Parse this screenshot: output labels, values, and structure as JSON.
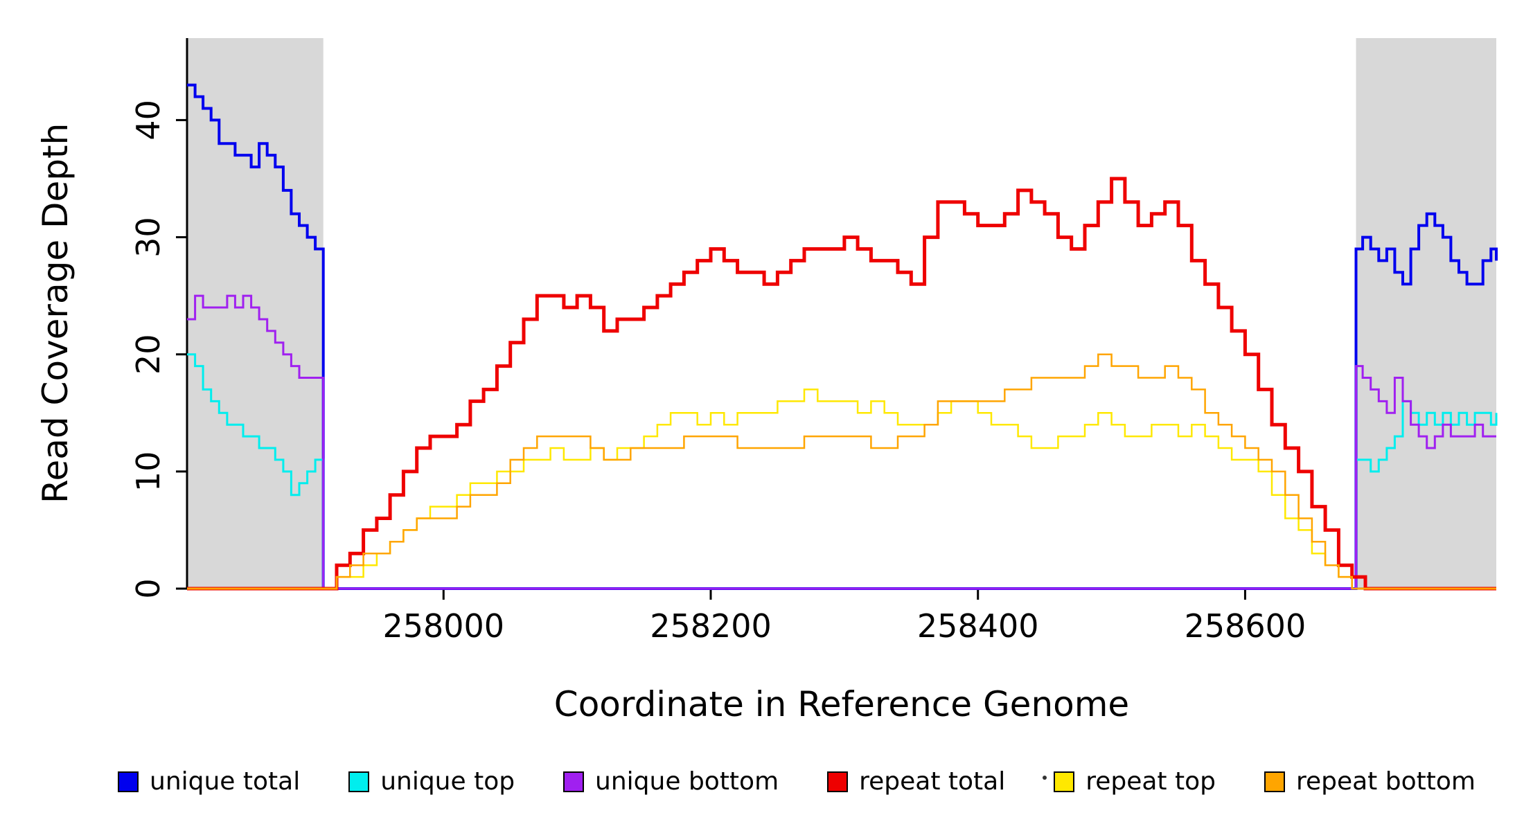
{
  "chart_data": {
    "type": "line",
    "style": "step",
    "title": "",
    "xlabel": "Coordinate in Reference Genome",
    "ylabel": "Read Coverage Depth",
    "xlim": [
      257808,
      258788
    ],
    "ylim": [
      0,
      47
    ],
    "x_ticks": [
      258000,
      258200,
      258400,
      258600
    ],
    "y_ticks": [
      0,
      10,
      20,
      30,
      40
    ],
    "grid": false,
    "legend_position": "bottom",
    "shaded_regions": [
      {
        "x0": 257808,
        "x1": 257910,
        "color": "#d8d8d8"
      },
      {
        "x0": 258683,
        "x1": 258788,
        "color": "#d8d8d8"
      }
    ],
    "series": [
      {
        "name": "unique total",
        "color": "#0000ee",
        "width": 4,
        "x": [
          257808,
          257814,
          257820,
          257826,
          257832,
          257838,
          257844,
          257850,
          257856,
          257862,
          257868,
          257874,
          257880,
          257886,
          257892,
          257898,
          257904,
          257910,
          258683,
          258688,
          258694,
          258700,
          258706,
          258712,
          258718,
          258724,
          258730,
          258736,
          258742,
          258748,
          258754,
          258760,
          258766,
          258772,
          258778,
          258784,
          258788
        ],
        "y": [
          43,
          42,
          41,
          40,
          38,
          38,
          37,
          37,
          36,
          38,
          37,
          36,
          34,
          32,
          31,
          30,
          29,
          0,
          29,
          30,
          29,
          28,
          29,
          27,
          26,
          29,
          31,
          32,
          31,
          30,
          28,
          27,
          26,
          26,
          28,
          29,
          28
        ]
      },
      {
        "name": "unique top",
        "color": "#00eeee",
        "width": 3,
        "x": [
          257808,
          257814,
          257820,
          257826,
          257832,
          257838,
          257844,
          257850,
          257856,
          257862,
          257868,
          257874,
          257880,
          257886,
          257892,
          257898,
          257904,
          257910,
          258683,
          258688,
          258694,
          258700,
          258706,
          258712,
          258718,
          258724,
          258730,
          258736,
          258742,
          258748,
          258754,
          258760,
          258766,
          258772,
          258778,
          258784,
          258788
        ],
        "y": [
          20,
          19,
          17,
          16,
          15,
          14,
          14,
          13,
          13,
          12,
          12,
          11,
          10,
          8,
          9,
          10,
          11,
          0,
          11,
          11,
          10,
          11,
          12,
          13,
          16,
          15,
          14,
          15,
          14,
          15,
          14,
          15,
          14,
          15,
          15,
          14,
          15
        ]
      },
      {
        "name": "unique bottom",
        "color": "#a020f0",
        "width": 3,
        "x": [
          257808,
          257814,
          257820,
          257826,
          257832,
          257838,
          257844,
          257850,
          257856,
          257862,
          257868,
          257874,
          257880,
          257886,
          257892,
          257898,
          257904,
          257910,
          258683,
          258688,
          258694,
          258700,
          258706,
          258712,
          258718,
          258724,
          258730,
          258736,
          258742,
          258748,
          258754,
          258760,
          258766,
          258772,
          258778,
          258784,
          258788
        ],
        "y": [
          23,
          25,
          24,
          24,
          24,
          25,
          24,
          25,
          24,
          23,
          22,
          21,
          20,
          19,
          18,
          18,
          18,
          0,
          19,
          18,
          17,
          16,
          15,
          18,
          16,
          14,
          13,
          12,
          13,
          14,
          13,
          13,
          13,
          14,
          13,
          13,
          13
        ]
      },
      {
        "name": "repeat total",
        "color": "#ee0000",
        "width": 5,
        "x": [
          257808,
          257910,
          257920,
          257930,
          257940,
          257950,
          257960,
          257970,
          257980,
          257990,
          258000,
          258010,
          258020,
          258030,
          258040,
          258050,
          258060,
          258070,
          258080,
          258090,
          258100,
          258110,
          258120,
          258130,
          258140,
          258150,
          258160,
          258170,
          258180,
          258190,
          258200,
          258210,
          258220,
          258230,
          258240,
          258250,
          258260,
          258270,
          258280,
          258290,
          258300,
          258310,
          258320,
          258330,
          258340,
          258350,
          258360,
          258370,
          258380,
          258390,
          258400,
          258410,
          258420,
          258430,
          258440,
          258450,
          258460,
          258470,
          258480,
          258490,
          258500,
          258510,
          258520,
          258530,
          258540,
          258550,
          258560,
          258570,
          258580,
          258590,
          258600,
          258610,
          258620,
          258630,
          258640,
          258650,
          258660,
          258670,
          258680,
          258690,
          258788
        ],
        "y": [
          0,
          0,
          2,
          3,
          5,
          6,
          8,
          10,
          12,
          13,
          13,
          14,
          16,
          17,
          19,
          21,
          23,
          25,
          25,
          24,
          25,
          24,
          22,
          23,
          23,
          24,
          25,
          26,
          27,
          28,
          29,
          28,
          27,
          27,
          26,
          27,
          28,
          29,
          29,
          29,
          30,
          29,
          28,
          28,
          27,
          26,
          30,
          33,
          33,
          32,
          31,
          31,
          32,
          34,
          33,
          32,
          30,
          29,
          31,
          33,
          35,
          33,
          31,
          32,
          33,
          31,
          28,
          26,
          24,
          22,
          20,
          17,
          14,
          12,
          10,
          7,
          5,
          2,
          1,
          0,
          0
        ]
      },
      {
        "name": "repeat top",
        "color": "#ffe800",
        "width": 2.5,
        "x": [
          257808,
          257910,
          257920,
          257930,
          257940,
          257950,
          257960,
          257970,
          257980,
          257990,
          258000,
          258010,
          258020,
          258030,
          258040,
          258050,
          258060,
          258070,
          258080,
          258090,
          258100,
          258110,
          258120,
          258130,
          258140,
          258150,
          258160,
          258170,
          258180,
          258190,
          258200,
          258210,
          258220,
          258230,
          258240,
          258250,
          258260,
          258270,
          258280,
          258290,
          258300,
          258310,
          258320,
          258330,
          258340,
          258350,
          258360,
          258370,
          258380,
          258390,
          258400,
          258410,
          258420,
          258430,
          258440,
          258450,
          258460,
          258470,
          258480,
          258490,
          258500,
          258510,
          258520,
          258530,
          258540,
          258550,
          258560,
          258570,
          258580,
          258590,
          258600,
          258610,
          258620,
          258630,
          258640,
          258650,
          258660,
          258670,
          258680,
          258690,
          258788
        ],
        "y": [
          0,
          0,
          1,
          1,
          2,
          3,
          4,
          5,
          6,
          7,
          7,
          8,
          9,
          9,
          10,
          10,
          11,
          11,
          12,
          11,
          11,
          12,
          11,
          12,
          12,
          13,
          14,
          15,
          15,
          14,
          15,
          14,
          15,
          15,
          15,
          16,
          16,
          17,
          16,
          16,
          16,
          15,
          16,
          15,
          14,
          14,
          14,
          15,
          16,
          16,
          15,
          14,
          14,
          13,
          12,
          12,
          13,
          13,
          14,
          15,
          14,
          13,
          13,
          14,
          14,
          13,
          14,
          13,
          12,
          11,
          11,
          10,
          8,
          6,
          5,
          3,
          2,
          1,
          0,
          0,
          0
        ]
      },
      {
        "name": "repeat bottom",
        "color": "#ffa500",
        "width": 2.5,
        "x": [
          257808,
          257910,
          257920,
          257930,
          257940,
          257950,
          257960,
          257970,
          257980,
          257990,
          258000,
          258010,
          258020,
          258030,
          258040,
          258050,
          258060,
          258070,
          258080,
          258090,
          258100,
          258110,
          258120,
          258130,
          258140,
          258150,
          258160,
          258170,
          258180,
          258190,
          258200,
          258210,
          258220,
          258230,
          258240,
          258250,
          258260,
          258270,
          258280,
          258290,
          258300,
          258310,
          258320,
          258330,
          258340,
          258350,
          258360,
          258370,
          258380,
          258390,
          258400,
          258410,
          258420,
          258430,
          258440,
          258450,
          258460,
          258470,
          258480,
          258490,
          258500,
          258510,
          258520,
          258530,
          258540,
          258550,
          258560,
          258570,
          258580,
          258590,
          258600,
          258610,
          258620,
          258630,
          258640,
          258650,
          258660,
          258670,
          258680,
          258690,
          258788
        ],
        "y": [
          0,
          0,
          1,
          2,
          3,
          3,
          4,
          5,
          6,
          6,
          6,
          7,
          8,
          8,
          9,
          11,
          12,
          13,
          13,
          13,
          13,
          12,
          11,
          11,
          12,
          12,
          12,
          12,
          13,
          13,
          13,
          13,
          12,
          12,
          12,
          12,
          12,
          13,
          13,
          13,
          13,
          13,
          12,
          12,
          13,
          13,
          14,
          16,
          16,
          16,
          16,
          16,
          17,
          17,
          18,
          18,
          18,
          18,
          19,
          20,
          19,
          19,
          18,
          18,
          19,
          18,
          17,
          15,
          14,
          13,
          12,
          11,
          10,
          8,
          6,
          4,
          2,
          1,
          0,
          0,
          0
        ]
      }
    ]
  },
  "axis": {
    "line_color": "#000000",
    "tick_label_color": "#000000"
  }
}
